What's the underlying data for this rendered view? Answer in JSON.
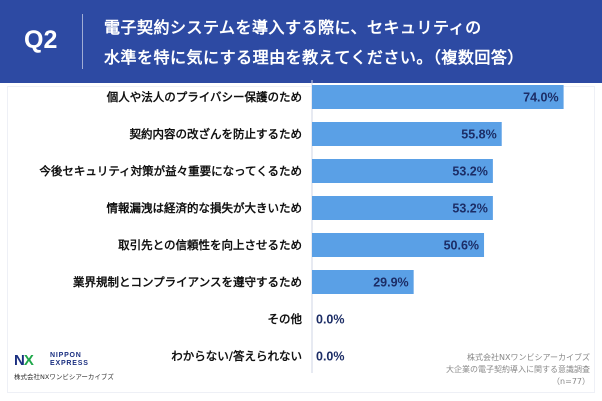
{
  "header": {
    "q_label": "Q2",
    "title_line1": "電子契約システムを導入する際に、セキュリティの",
    "title_line2": "水準を特に気にする理由を教えてください。（複数回答）",
    "background_color": "#2d4aa3"
  },
  "chart_data": {
    "type": "bar",
    "orientation": "horizontal",
    "categories": [
      "個人や法人のプライバシー保護のため",
      "契約内容の改ざんを防止するため",
      "今後セキュリティ対策が益々重要になってくるため",
      "情報漏洩は経済的な損失が大きいため",
      "取引先との信頼性を向上させるため",
      "業界規制とコンプライアンスを遵守するため",
      "その他",
      "わからない/答えられない"
    ],
    "values": [
      74.0,
      55.8,
      53.2,
      53.2,
      50.6,
      29.9,
      0.0,
      0.0
    ],
    "value_labels": [
      "74.0%",
      "55.8%",
      "53.2%",
      "53.2%",
      "50.6%",
      "29.9%",
      "0.0%",
      "0.0%"
    ],
    "unit": "%",
    "xlim": [
      0,
      80
    ],
    "bar_color": "#5aa0e6",
    "label_color": "#1c2d66",
    "grid": false
  },
  "logo": {
    "mark_n": "N",
    "mark_x": "X",
    "name_line1": "NIPPON",
    "name_line2": "EXPRESS",
    "sub": "株式会社NXワンビシアーカイブズ"
  },
  "source": {
    "line1": "株式会社NXワンビシアーカイブズ",
    "line2": "大企業の電子契約導入に関する意識調査",
    "line3": "（n=77）"
  }
}
